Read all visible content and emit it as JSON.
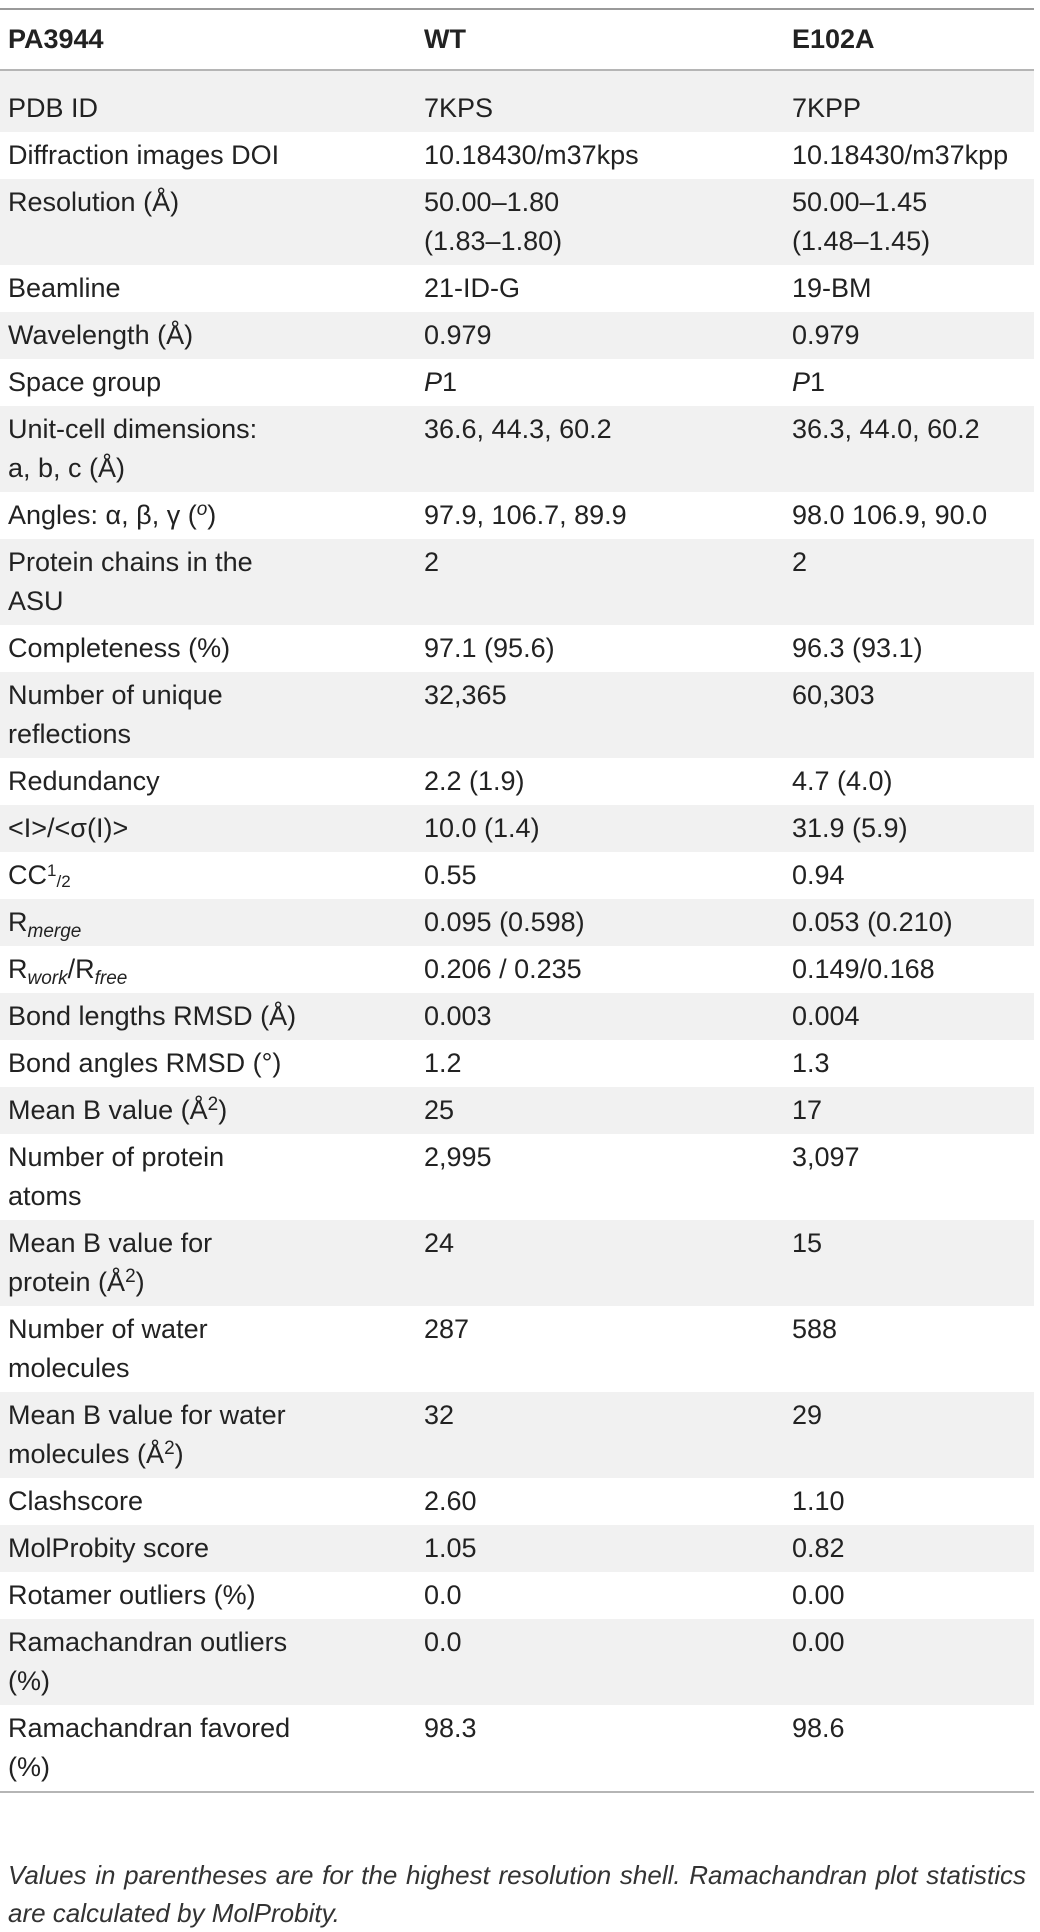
{
  "header": {
    "col1": "PA3944",
    "col2": "WT",
    "col3": "E102A"
  },
  "rows": [
    {
      "label": "PDB ID",
      "wt": "7KPS",
      "e102a": "7KPP"
    },
    {
      "label": "Diffraction images DOI",
      "wt": "10.18430/m37kps",
      "e102a": "10.18430/m37kpp"
    },
    {
      "label": "Resolution (Å)",
      "wt": [
        "50.00–1.80",
        "(1.83–1.80)"
      ],
      "e102a": [
        "50.00–1.45",
        "(1.48–1.45)"
      ]
    },
    {
      "label": "Beamline",
      "wt": "21-ID-G",
      "e102a": "19-BM"
    },
    {
      "label": "Wavelength (Å)",
      "wt": "0.979",
      "e102a": "0.979"
    },
    {
      "label": "Space group",
      "wt_italic": "P",
      "wt_rest": "1",
      "e102a_italic": "P",
      "e102a_rest": "1"
    },
    {
      "label": [
        "Unit-cell dimensions:",
        "a, b, c (Å)"
      ],
      "wt": "36.6, 44.3, 60.2",
      "e102a": "36.3, 44.0, 60.2"
    },
    {
      "label_pre": "Angles: α, β, γ (",
      "label_sup": "o",
      "label_post": ")",
      "wt": "97.9, 106.7, 89.9",
      "e102a": "98.0 106.9, 90.0"
    },
    {
      "label": [
        "Protein chains in the",
        "ASU"
      ],
      "wt": "2",
      "e102a": "2"
    },
    {
      "label": "Completeness (%)",
      "wt": "97.1 (95.6)",
      "e102a": "96.3 (93.1)"
    },
    {
      "label": [
        "Number of unique",
        "reflections"
      ],
      "wt": "32,365",
      "e102a": "60,303"
    },
    {
      "label": "Redundancy",
      "wt": "2.2 (1.9)",
      "e102a": "4.7 (4.0)"
    },
    {
      "label": "<I>/<σ(I)>",
      "wt": "10.0 (1.4)",
      "e102a": "31.9 (5.9)"
    },
    {
      "label_base": "CC",
      "label_num": "1",
      "label_den": "2",
      "wt": "0.55",
      "e102a": "0.94"
    },
    {
      "label_base": "R",
      "label_sub": "merge",
      "wt": "0.095 (0.598)",
      "e102a": "0.053 (0.210)"
    },
    {
      "label_base": "R",
      "label_sub": "work",
      "label_mid": "/R",
      "label_sub2": "free",
      "wt": "0.206 / 0.235",
      "e102a": "0.149/0.168"
    },
    {
      "label": "Bond lengths RMSD (Å)",
      "wt": "0.003",
      "e102a": "0.004"
    },
    {
      "label": "Bond angles RMSD (°)",
      "wt": "1.2",
      "e102a": "1.3"
    },
    {
      "label_pre": "Mean B value (Å",
      "label_sup": "2",
      "label_post": ")",
      "wt": "25",
      "e102a": "17"
    },
    {
      "label": [
        "Number of protein",
        "atoms"
      ],
      "wt": "2,995",
      "e102a": "3,097"
    },
    {
      "label_line1": "Mean B value for",
      "label_pre": "protein (Å",
      "label_sup": "2",
      "label_post": ")",
      "wt": "24",
      "e102a": "15"
    },
    {
      "label": [
        "Number of water",
        "molecules"
      ],
      "wt": "287",
      "e102a": "588"
    },
    {
      "label_line1": "Mean B value for water",
      "label_pre": "molecules (Å",
      "label_sup": "2",
      "label_post": ")",
      "wt": "32",
      "e102a": "29"
    },
    {
      "label": "Clashscore",
      "wt": "2.60",
      "e102a": "1.10"
    },
    {
      "label": "MolProbity score",
      "wt": "1.05",
      "e102a": "0.82"
    },
    {
      "label": "Rotamer outliers (%)",
      "wt": "0.0",
      "e102a": "0.00"
    },
    {
      "label": [
        "Ramachandran outliers",
        "(%)"
      ],
      "wt": "0.0",
      "e102a": "0.00"
    },
    {
      "label": [
        "Ramachandran favored",
        "(%)"
      ],
      "wt": "98.3",
      "e102a": "98.6"
    }
  ],
  "footnote": "Values in parentheses are for the highest resolution shell. Ramachandran plot statistics are calculated by MolProbity."
}
